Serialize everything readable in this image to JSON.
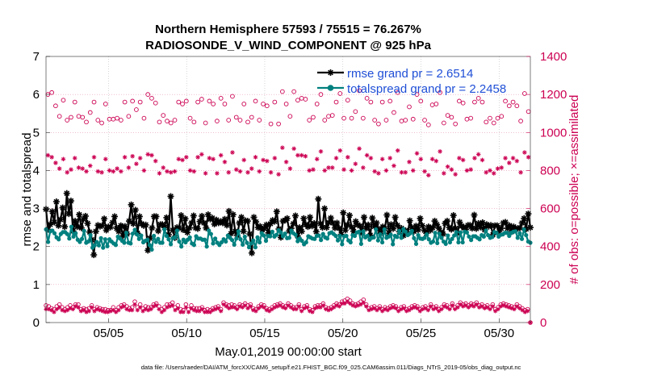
{
  "chart_data": {
    "type": "line",
    "title_line1": "Northern Hemisphere 57593 / 75515 = 76.267%",
    "title_line2": "RADIOSONDE_V_WIND_COMPONENT @ 925 hPa",
    "xlabel": "May.01,2019 00:00:00 start",
    "ylabel": "rmse and totalspread",
    "y2label": "# of obs: o=possible; ×=assimilated",
    "footnote": "data file: /Users/raeder/DAI/ATM_forcXX/CAM6_setup/f.e21.FHIST_BGC.f09_025.CAM6assim.011/Diags_NTrS_2019-05/obs_diag_output.nc",
    "xlim": [
      1.0,
      32.0
    ],
    "ylim": [
      0,
      7
    ],
    "y2lim": [
      0,
      1400
    ],
    "xticks": [
      {
        "value": 5,
        "label": "05/05"
      },
      {
        "value": 10,
        "label": "05/10"
      },
      {
        "value": 15,
        "label": "05/15"
      },
      {
        "value": 20,
        "label": "05/20"
      },
      {
        "value": 25,
        "label": "05/25"
      },
      {
        "value": 30,
        "label": "05/30"
      }
    ],
    "yticks": [
      "0",
      "1",
      "2",
      "3",
      "4",
      "5",
      "6",
      "7"
    ],
    "y2ticks": [
      "0",
      "200",
      "400",
      "600",
      "800",
      "1000",
      "1200",
      "1400"
    ],
    "colors": {
      "rmse": "#000000",
      "spread": "#00807f",
      "obs": "#cc0052",
      "legend_text": "#1f4fd6"
    },
    "series": [
      {
        "name": "rmse",
        "legend": "rmse grand pr = 2.6514",
        "color": "#000000",
        "marker": "asterisk",
        "values": [
          2.98,
          2.45,
          2.58,
          2.92,
          2.64,
          3.18,
          2.55,
          2.71,
          3.02,
          2.52,
          3.4,
          2.86,
          3.2,
          2.41,
          2.67,
          2.52,
          2.84,
          2.49,
          2.72,
          2.8,
          2.61,
          2.38,
          2.18,
          1.78,
          2.4,
          2.56,
          2.53,
          2.55,
          2.73,
          2.43,
          2.52,
          2.51,
          2.63,
          2.79,
          2.48,
          2.4,
          2.55,
          2.28,
          2.53,
          2.33,
          2.67,
          3.1,
          2.6,
          2.96,
          2.35,
          2.79,
          2.6,
          2.55,
          2.57,
          1.9,
          2.22,
          2.49,
          2.79,
          2.79,
          2.41,
          2.58,
          2.58,
          2.5,
          2.76,
          2.31,
          3.32,
          2.43,
          2.23,
          2.5,
          2.49,
          2.82,
          2.44,
          2.73,
          2.37,
          2.49,
          2.62,
          2.81,
          2.49,
          2.47,
          2.66,
          2.8,
          2.62,
          2.49,
          2.84,
          2.72,
          2.75,
          2.59,
          2.7,
          2.62,
          2.66,
          2.62,
          2.72,
          2.56,
          2.93,
          2.34,
          2.84,
          2.4,
          2.29,
          2.62,
          2.77,
          2.4,
          2.68,
          2.67,
          2.33,
          1.83,
          2.77,
          2.65,
          2.5,
          2.53,
          2.44,
          2.48,
          2.57,
          2.36,
          2.6,
          2.69,
          2.66,
          2.92,
          2.46,
          2.24,
          2.67,
          2.69,
          2.74,
          2.41,
          2.48,
          2.6,
          2.81,
          2.28,
          2.5,
          2.4,
          2.74,
          2.58,
          2.52,
          2.77,
          2.54,
          2.61,
          2.39,
          3.25,
          2.6,
          2.5,
          3.0,
          2.5,
          2.63,
          2.75,
          2.62,
          2.49,
          2.62,
          2.48,
          2.32,
          2.89,
          2.43,
          2.57,
          2.82,
          2.51,
          2.4,
          2.66,
          2.57,
          2.54,
          2.35,
          2.77,
          2.48,
          2.57,
          2.3,
          2.75,
          2.53,
          2.62,
          2.45,
          2.35,
          2.52,
          2.47,
          2.83,
          2.35,
          2.58,
          2.47,
          2.77,
          2.56,
          2.39,
          2.48,
          2.29,
          2.42,
          2.34,
          2.68,
          2.5,
          2.4,
          2.54,
          2.44,
          2.74,
          2.55,
          2.43,
          2.35,
          2.52,
          2.43,
          2.5,
          2.67,
          2.58,
          2.48,
          2.38,
          2.33,
          2.61,
          2.67,
          2.5,
          2.45,
          2.82,
          2.48,
          2.35,
          2.64,
          2.54,
          2.49,
          2.45,
          2.56,
          2.56,
          2.48,
          2.83,
          2.47,
          2.61,
          2.51,
          2.63,
          2.44,
          2.58,
          2.53,
          2.56,
          2.31,
          2.55,
          2.55,
          2.4,
          2.48,
          2.62,
          2.64,
          2.48,
          2.55,
          2.39,
          2.52,
          2.46,
          2.48,
          2.49,
          2.62,
          2.74,
          2.46,
          2.86,
          2.5
        ]
      },
      {
        "name": "totalspread",
        "legend": "totalspread grand pr = 2.2458",
        "color": "#00807f",
        "marker": "dot",
        "values": [
          2.45,
          2.12,
          2.4,
          2.42,
          2.35,
          2.24,
          2.19,
          2.33,
          2.38,
          2.38,
          2.33,
          2.21,
          2.52,
          2.26,
          2.35,
          2.18,
          2.12,
          2.2,
          2.41,
          2.1,
          2.13,
          2.3,
          1.97,
          2.03,
          2.12,
          2.03,
          2.22,
          1.97,
          2.19,
          2.01,
          2.19,
          2.13,
          2.08,
          2.04,
          2.26,
          2.21,
          2.15,
          2.1,
          2.36,
          2.1,
          2.08,
          2.34,
          2.44,
          2.32,
          2.2,
          2.29,
          2.11,
          2.15,
          2.18,
          2.04,
          1.92,
          2.28,
          2.12,
          2.2,
          2.1,
          2.1,
          2.45,
          2.28,
          2.19,
          2.06,
          2.22,
          2.24,
          2.42,
          2.13,
          2.0,
          2.18,
          2.11,
          2.18,
          2.24,
          2.08,
          2.04,
          2.27,
          2.21,
          2.21,
          2.18,
          2.18,
          2.0,
          2.42,
          2.33,
          2.08,
          2.21,
          2.1,
          2.04,
          2.11,
          2.19,
          2.13,
          2.29,
          2.23,
          2.17,
          2.05,
          2.21,
          2.4,
          2.19,
          2.05,
          2.26,
          2.1,
          1.98,
          2.08,
          2.16,
          1.98,
          2.24,
          2.11,
          2.35,
          2.29,
          2.15,
          2.28,
          2.27,
          2.39,
          2.26,
          2.31,
          2.43,
          2.37,
          2.27,
          2.34,
          2.22,
          2.23,
          2.42,
          2.35,
          2.31,
          2.14,
          2.21,
          2.15,
          2.06,
          2.11,
          2.27,
          2.24,
          2.21,
          2.2,
          2.28,
          2.29,
          2.17,
          2.33,
          2.24,
          2.21,
          2.35,
          2.37,
          2.33,
          2.28,
          2.16,
          2.28,
          2.06,
          2.27,
          2.28,
          2.16,
          2.11,
          2.3,
          2.28,
          2.37,
          2.39,
          2.07,
          2.4,
          2.24,
          2.28,
          2.18,
          2.23,
          2.24,
          2.45,
          2.16,
          2.32,
          2.11,
          2.45,
          2.23,
          2.26,
          2.31,
          2.06,
          2.28,
          2.25,
          2.41,
          2.23,
          2.46,
          2.39,
          2.3,
          2.34,
          2.41,
          2.22,
          2.07,
          2.3,
          2.21,
          2.2,
          2.23,
          2.32,
          2.19,
          2.1,
          2.13,
          2.36,
          2.09,
          2.34,
          2.23,
          2.13,
          2.07,
          2.29,
          2.11,
          2.2,
          2.29,
          2.38,
          2.11,
          2.37,
          2.11,
          2.39,
          2.37,
          2.26,
          2.17,
          2.27,
          2.27,
          2.23,
          2.19,
          2.3,
          2.26,
          2.42,
          2.3,
          2.23,
          2.25,
          2.38,
          2.36,
          2.26,
          2.31,
          2.32,
          2.36,
          2.36,
          2.28,
          2.36,
          2.39,
          2.4,
          2.23,
          2.35,
          2.2,
          2.45,
          2.3,
          2.13,
          2.1
        ]
      },
      {
        "name": "possible",
        "axis": "right",
        "color": "#cc0052",
        "marker": "circle",
        "values_0z": [
          1200,
          1140,
          1170,
          1080,
          1085,
          1055,
          1160,
          1050,
          1070,
          1075,
          1160,
          1165,
          1160,
          1200,
          1155,
          1090,
          1050,
          1160,
          1165,
          1055,
          1175,
          1165,
          1060,
          1150,
          1190,
          1065,
          1055,
          1165,
          1150,
          1045,
          1045,
          1150,
          1215,
          1180,
          1065,
          1150,
          1065,
          1090,
          1205,
          1170,
          1110,
          1075,
          1160,
          1045,
          1065,
          1105,
          1060,
          1135,
          1200,
          1065,
          1145,
          1210,
          1090,
          1045,
          1155,
          1075,
          1180,
          1055,
          1050,
          1085,
          1140,
          1140,
          1205
        ],
        "values_12z": [
          1210,
          1085,
          1065,
          1160,
          1080,
          1105,
          1065,
          1150,
          1070,
          1065,
          1085,
          1120,
          1075,
          1180,
          1055,
          1060,
          1065,
          1150,
          1075,
          1160,
          1050,
          1150,
          1180,
          1065,
          1080,
          1150,
          1080,
          1065,
          1140,
          1160,
          1215,
          1085,
          1170,
          1175,
          1080,
          1200,
          1085,
          1160,
          1075,
          1075,
          1220,
          1180,
          1065,
          1160,
          1165,
          1210,
          1065,
          1070,
          1165,
          1040,
          1150,
          1050,
          1080,
          1165,
          1070,
          1160,
          1160,
          1075,
          1075,
          1165,
          1160,
          1060,
          1110
        ]
      },
      {
        "name": "assimilated",
        "axis": "right",
        "color": "#cc0052",
        "marker": "star",
        "values_0z": [
          880,
          840,
          860,
          805,
          815,
          795,
          870,
          790,
          800,
          810,
          870,
          875,
          865,
          885,
          850,
          815,
          790,
          860,
          870,
          795,
          885,
          865,
          785,
          845,
          895,
          795,
          790,
          870,
          855,
          790,
          780,
          845,
          915,
          880,
          800,
          860,
          800,
          815,
          905,
          870,
          835,
          815,
          865,
          785,
          800,
          825,
          790,
          845,
          890,
          795,
          860,
          900,
          820,
          780,
          855,
          805,
          885,
          790,
          785,
          815,
          840,
          850,
          895
        ],
        "values_12z": [
          870,
          810,
          790,
          865,
          810,
          825,
          795,
          860,
          795,
          795,
          815,
          835,
          800,
          880,
          785,
          795,
          795,
          855,
          800,
          870,
          785,
          860,
          880,
          790,
          805,
          855,
          810,
          795,
          850,
          865,
          920,
          810,
          880,
          875,
          805,
          900,
          815,
          865,
          805,
          800,
          915,
          880,
          795,
          860,
          865,
          905,
          790,
          800,
          860,
          775,
          850,
          785,
          805,
          865,
          800,
          865,
          855,
          800,
          810,
          865,
          865,
          790,
          870
        ]
      },
      {
        "name": "possible_low",
        "axis": "right",
        "color": "#cc0052",
        "marker": "circle",
        "values": [
          90,
          85,
          75,
          70,
          85,
          95,
          80,
          70,
          80,
          90,
          80,
          95,
          95,
          70,
          75,
          70,
          75,
          90,
          70,
          80,
          75,
          70,
          70,
          65,
          65,
          80,
          65,
          80,
          90,
          95,
          85,
          75,
          80,
          110,
          80,
          95,
          75,
          85,
          80,
          80,
          95,
          100,
          85,
          70,
          80,
          95,
          95,
          105,
          80,
          90,
          70,
          65,
          95,
          70,
          90,
          75,
          75,
          75,
          80,
          65,
          70,
          65,
          75,
          80,
          85,
          70,
          105,
          95,
          90,
          95,
          90,
          80,
          95,
          90,
          100,
          90,
          95,
          75,
          70,
          85,
          95,
          90,
          75,
          70,
          80,
          90,
          95,
          100,
          90,
          85,
          100,
          90,
          80,
          80,
          95,
          70,
          85,
          90,
          70,
          65,
          85,
          90,
          90,
          100,
          80,
          75,
          80,
          90,
          100,
          95,
          110,
          115,
          125,
          115,
          100,
          95,
          100,
          110,
          120,
          95,
          75,
          80,
          85,
          75,
          85,
          70,
          80,
          75,
          85,
          90,
          85,
          70,
          80,
          85,
          70,
          75,
          85,
          90,
          85,
          70,
          80,
          85,
          75,
          95,
          80,
          85,
          70,
          80,
          95,
          90,
          80,
          100,
          80,
          90,
          105,
          95,
          100,
          90,
          100,
          95,
          105,
          90,
          95,
          85,
          90,
          80,
          95,
          70,
          80,
          95,
          100,
          95,
          90,
          85,
          80,
          95,
          85,
          75,
          65,
          70,
          0
        ]
      },
      {
        "name": "assimilated_low",
        "axis": "right",
        "color": "#cc0052",
        "marker": "star",
        "values": [
          70,
          70,
          65,
          55,
          70,
          80,
          65,
          60,
          65,
          75,
          70,
          85,
          80,
          60,
          65,
          55,
          60,
          80,
          60,
          70,
          65,
          60,
          55,
          55,
          60,
          65,
          55,
          65,
          80,
          85,
          70,
          65,
          65,
          95,
          65,
          80,
          60,
          70,
          65,
          70,
          85,
          90,
          70,
          55,
          65,
          80,
          85,
          90,
          65,
          75,
          55,
          55,
          80,
          55,
          75,
          65,
          60,
          60,
          70,
          55,
          55,
          55,
          65,
          70,
          75,
          60,
          95,
          85,
          75,
          80,
          80,
          70,
          85,
          80,
          90,
          75,
          85,
          65,
          60,
          75,
          85,
          80,
          65,
          60,
          70,
          80,
          85,
          90,
          80,
          75,
          90,
          80,
          70,
          70,
          85,
          60,
          75,
          80,
          60,
          55,
          75,
          80,
          80,
          90,
          70,
          65,
          70,
          80,
          90,
          85,
          100,
          100,
          110,
          100,
          90,
          85,
          90,
          95,
          105,
          85,
          65,
          70,
          75,
          65,
          75,
          60,
          70,
          65,
          75,
          80,
          75,
          60,
          70,
          75,
          60,
          65,
          75,
          80,
          75,
          60,
          70,
          75,
          65,
          85,
          70,
          75,
          60,
          70,
          85,
          80,
          70,
          90,
          70,
          80,
          95,
          85,
          90,
          80,
          90,
          85,
          95,
          80,
          85,
          75,
          80,
          70,
          85,
          60,
          70,
          85,
          90,
          85,
          80,
          75,
          70,
          85,
          75,
          65,
          55,
          60,
          0
        ]
      }
    ]
  }
}
